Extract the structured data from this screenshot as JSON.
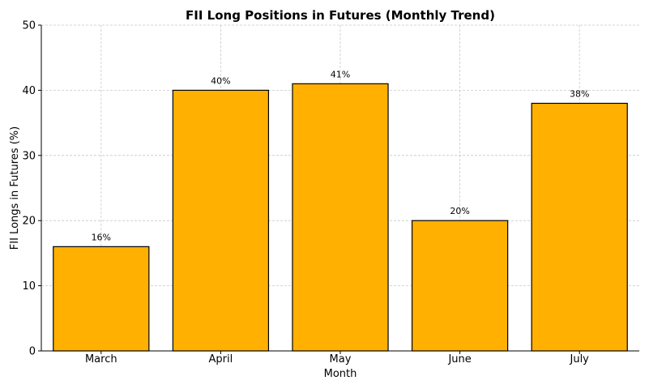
{
  "chart_data": {
    "type": "bar",
    "title": "FII Long Positions in Futures (Monthly Trend)",
    "xlabel": "Month",
    "ylabel": "FII Longs in Futures (%)",
    "categories": [
      "March",
      "April",
      "May",
      "June",
      "July"
    ],
    "values": [
      16,
      40,
      41,
      20,
      38
    ],
    "data_labels": [
      "16%",
      "40%",
      "41%",
      "20%",
      "38%"
    ],
    "ylim": [
      0,
      50
    ],
    "yticks": [
      0,
      10,
      20,
      30,
      40,
      50
    ],
    "grid": true,
    "bar_color": "#FFB000",
    "edge_color": "#000000"
  }
}
